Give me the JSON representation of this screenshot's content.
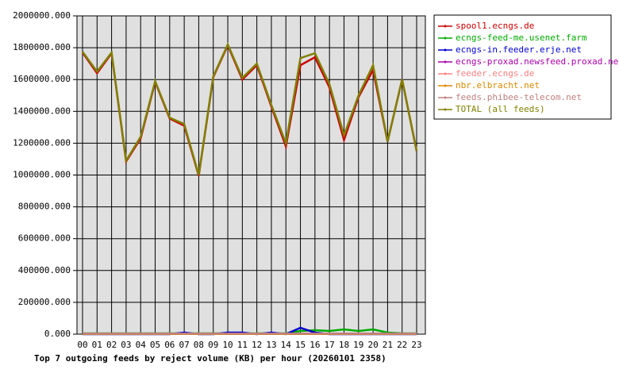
{
  "chart_data": {
    "type": "line",
    "title": "Top 7 outgoing feeds by reject volume (KB) per hour (20260101 2358)",
    "categories": [
      "00",
      "01",
      "02",
      "03",
      "04",
      "05",
      "06",
      "07",
      "08",
      "09",
      "10",
      "11",
      "12",
      "13",
      "14",
      "15",
      "16",
      "17",
      "18",
      "19",
      "20",
      "21",
      "22",
      "23"
    ],
    "ylim": [
      0,
      2000000
    ],
    "yticks": [
      {
        "value": 0,
        "label": "0.000"
      },
      {
        "value": 200000,
        "label": "200000.000"
      },
      {
        "value": 400000,
        "label": "400000.000"
      },
      {
        "value": 600000,
        "label": "600000.000"
      },
      {
        "value": 800000,
        "label": "800000.000"
      },
      {
        "value": 1000000,
        "label": "1000000.000"
      },
      {
        "value": 1200000,
        "label": "1200000.000"
      },
      {
        "value": 1400000,
        "label": "1400000.000"
      },
      {
        "value": 1600000,
        "label": "1600000.000"
      },
      {
        "value": 1800000,
        "label": "1800000.000"
      },
      {
        "value": 2000000,
        "label": "2000000.000"
      }
    ],
    "grid": true,
    "legend": "right",
    "series": [
      {
        "name": "spool1.ecngs.de",
        "color": "#cc0000",
        "values": [
          1770000,
          1640000,
          1765000,
          1085000,
          1230000,
          1585000,
          1355000,
          1310000,
          995000,
          1615000,
          1815000,
          1600000,
          1690000,
          1430000,
          1180000,
          1690000,
          1740000,
          1550000,
          1220000,
          1490000,
          1660000,
          1210000,
          1600000,
          1150000
        ]
      },
      {
        "name": "ecngs-feed-me.usenet.farm",
        "color": "#00aa00",
        "values": [
          5000,
          5000,
          5000,
          5000,
          5000,
          5000,
          5000,
          5000,
          5000,
          5000,
          5000,
          5000,
          5000,
          5000,
          5000,
          20000,
          25000,
          20000,
          30000,
          20000,
          30000,
          10000,
          5000,
          5000
        ]
      },
      {
        "name": "ecngs-in.feeder.erje.net",
        "color": "#0000cc",
        "values": [
          0,
          0,
          0,
          0,
          0,
          0,
          0,
          10000,
          0,
          0,
          10000,
          10000,
          0,
          10000,
          0,
          40000,
          10000,
          0,
          0,
          0,
          0,
          0,
          0,
          0
        ]
      },
      {
        "name": "ecngs-proxad.newsfeed.proxad.net",
        "color": "#aa00aa",
        "values": [
          2000,
          2000,
          2000,
          2000,
          2000,
          2000,
          2000,
          2000,
          2000,
          2000,
          2000,
          2000,
          2000,
          2000,
          2000,
          2000,
          2000,
          2000,
          2000,
          2000,
          2000,
          2000,
          2000,
          2000
        ]
      },
      {
        "name": "feeder.ecngs.de",
        "color": "#ff8080",
        "values": [
          3000,
          3000,
          3000,
          3000,
          3000,
          3000,
          3000,
          3000,
          3000,
          3000,
          3000,
          3000,
          3000,
          3000,
          3000,
          3000,
          3000,
          3000,
          3000,
          3000,
          3000,
          3000,
          3000,
          3000
        ]
      },
      {
        "name": "nbr.elbracht.net",
        "color": "#dd8800",
        "values": [
          1000,
          1000,
          1000,
          1000,
          1000,
          1000,
          1000,
          1000,
          1000,
          1000,
          1000,
          1000,
          1000,
          1000,
          1000,
          1000,
          1000,
          1000,
          1000,
          1000,
          1000,
          1000,
          1000,
          1000
        ]
      },
      {
        "name": "feeds.phibee-telecom.net",
        "color": "#c08080",
        "values": [
          4000,
          4000,
          4000,
          4000,
          4000,
          4000,
          4000,
          4000,
          4000,
          4000,
          4000,
          4000,
          4000,
          4000,
          4000,
          4000,
          4000,
          4000,
          4000,
          4000,
          4000,
          4000,
          4000,
          4000
        ]
      },
      {
        "name": "TOTAL (all feeds)",
        "color": "#808000",
        "values": [
          1775000,
          1650000,
          1770000,
          1090000,
          1240000,
          1590000,
          1360000,
          1320000,
          1000000,
          1620000,
          1820000,
          1610000,
          1700000,
          1440000,
          1200000,
          1735000,
          1765000,
          1570000,
          1250000,
          1500000,
          1690000,
          1210000,
          1600000,
          1150000
        ]
      }
    ]
  }
}
